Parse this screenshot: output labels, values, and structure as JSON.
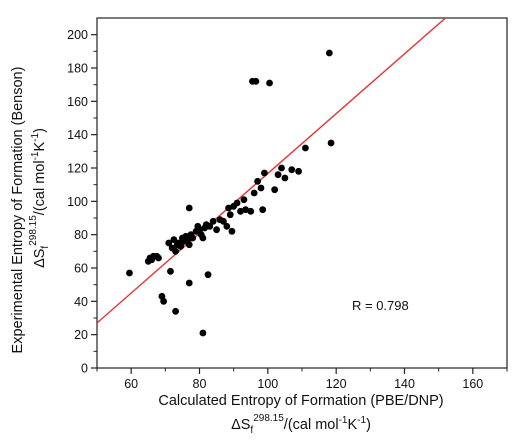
{
  "chart_data": {
    "type": "scatter",
    "xlabel": "Calculated Entropy of Formation (PBE/DNP)",
    "xlabel_unit_prefix": "ΔS",
    "xlabel_unit_sub": "f",
    "xlabel_unit_sup": "298.15",
    "xlabel_unit_rest": "/(cal mol",
    "xlabel_unit_sup2": "-1",
    "xlabel_unit_k": "K",
    "xlabel_unit_sup3": "-1",
    "xlabel_unit_close": ")",
    "ylabel": "Experimental Entropy of Formation (Benson)",
    "ylabel_unit_prefix": "ΔS",
    "ylabel_unit_sub": "f",
    "ylabel_unit_sup": "298.15",
    "ylabel_unit_rest": "/(cal mol",
    "ylabel_unit_sup2": "-1",
    "ylabel_unit_k": "K",
    "ylabel_unit_sup3": "-1",
    "ylabel_unit_close": ")",
    "xlim": [
      50,
      170
    ],
    "ylim": [
      0,
      210
    ],
    "xticks": [
      60,
      80,
      100,
      120,
      140,
      160
    ],
    "yticks": [
      0,
      20,
      40,
      60,
      80,
      100,
      120,
      140,
      160,
      180,
      200
    ],
    "grid": false,
    "annotation": "R = 0.798",
    "fit_line": {
      "color": "#e8302f",
      "x": [
        50,
        152
      ],
      "y": [
        27,
        210
      ]
    },
    "marker_color": "#000000",
    "points": [
      [
        59.5,
        57
      ],
      [
        65,
        64
      ],
      [
        65.5,
        66
      ],
      [
        66,
        65
      ],
      [
        66.5,
        67
      ],
      [
        67.5,
        67
      ],
      [
        68,
        66
      ],
      [
        69,
        43
      ],
      [
        69.5,
        40
      ],
      [
        71,
        75
      ],
      [
        71.5,
        58
      ],
      [
        72,
        72
      ],
      [
        72.5,
        77
      ],
      [
        73,
        70
      ],
      [
        73,
        34
      ],
      [
        73.5,
        74
      ],
      [
        74,
        75
      ],
      [
        74.5,
        73
      ],
      [
        75,
        78
      ],
      [
        75.5,
        76
      ],
      [
        76,
        79
      ],
      [
        76.5,
        77
      ],
      [
        77,
        74
      ],
      [
        77,
        96
      ],
      [
        77,
        51
      ],
      [
        77.5,
        80
      ],
      [
        78,
        78
      ],
      [
        79,
        82
      ],
      [
        79.5,
        85
      ],
      [
        80,
        83
      ],
      [
        80.5,
        80
      ],
      [
        81,
        78
      ],
      [
        81,
        21
      ],
      [
        81.5,
        84
      ],
      [
        82,
        86
      ],
      [
        82.5,
        56
      ],
      [
        83,
        85
      ],
      [
        84,
        88
      ],
      [
        85,
        83
      ],
      [
        86,
        89
      ],
      [
        87,
        88
      ],
      [
        88,
        85
      ],
      [
        88.5,
        96
      ],
      [
        89,
        92
      ],
      [
        89.5,
        82
      ],
      [
        90,
        97
      ],
      [
        91,
        99
      ],
      [
        92,
        94
      ],
      [
        93,
        101
      ],
      [
        93.5,
        95
      ],
      [
        95,
        94
      ],
      [
        95.5,
        172
      ],
      [
        96,
        105
      ],
      [
        96.5,
        172
      ],
      [
        97,
        112
      ],
      [
        98,
        108
      ],
      [
        98.5,
        95
      ],
      [
        99,
        117
      ],
      [
        100.5,
        171
      ],
      [
        102,
        107
      ],
      [
        103,
        116
      ],
      [
        104,
        120
      ],
      [
        105,
        114
      ],
      [
        107,
        119
      ],
      [
        109,
        118
      ],
      [
        111,
        132
      ],
      [
        118,
        189
      ],
      [
        118.5,
        135
      ]
    ]
  }
}
